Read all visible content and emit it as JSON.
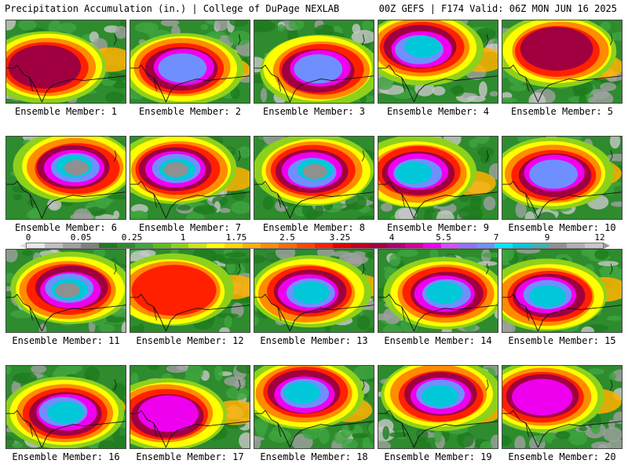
{
  "header": {
    "left": "Precipitation Accumulation (in.) | College of DuPage NEXLAB",
    "right": "00Z GEFS | F174 Valid: 06Z MON JUN 16 2025"
  },
  "members": [
    {
      "label": "Ensemble Member: 1",
      "max": 3.6
    },
    {
      "label": "Ensemble Member: 2",
      "max": 5.8
    },
    {
      "label": "Ensemble Member: 3",
      "max": 5.5
    },
    {
      "label": "Ensemble Member: 4",
      "max": 7.0
    },
    {
      "label": "Ensemble Member: 5",
      "max": 3.6
    },
    {
      "label": "Ensemble Member: 6",
      "max": 9.0
    },
    {
      "label": "Ensemble Member: 7",
      "max": 9.0
    },
    {
      "label": "Ensemble Member: 8",
      "max": 9.0
    },
    {
      "label": "Ensemble Member: 9",
      "max": 7.0
    },
    {
      "label": "Ensemble Member: 10",
      "max": 6.5
    },
    {
      "label": "Ensemble Member: 11",
      "max": 9.0
    },
    {
      "label": "Ensemble Member: 12",
      "max": 3.0
    },
    {
      "label": "Ensemble Member: 13",
      "max": 7.0
    },
    {
      "label": "Ensemble Member: 14",
      "max": 7.0
    },
    {
      "label": "Ensemble Member: 15",
      "max": 7.0
    },
    {
      "label": "Ensemble Member: 16",
      "max": 7.5
    },
    {
      "label": "Ensemble Member: 17",
      "max": 5.0
    },
    {
      "label": "Ensemble Member: 18",
      "max": 7.0
    },
    {
      "label": "Ensemble Member: 19",
      "max": 7.0
    },
    {
      "label": "Ensemble Member: 20",
      "max": 5.0
    }
  ],
  "colorbar": {
    "labels": [
      "0",
      "0.05",
      "0.25",
      "1",
      "1.75",
      "2.5",
      "3.25",
      "4",
      "5.5",
      "7",
      "9",
      "12"
    ],
    "colors": [
      "#e8e8e8",
      "#c0c0c0",
      "#a0a0a0",
      "#808080",
      "#1e7a1e",
      "#2e8b2e",
      "#3fa53f",
      "#5cbf1a",
      "#8ed11a",
      "#c8e61a",
      "#ffff00",
      "#ffd700",
      "#ffb000",
      "#ff8c00",
      "#ff6a00",
      "#ff4500",
      "#ff2000",
      "#e00000",
      "#c00020",
      "#a00040",
      "#b0006e",
      "#d0009a",
      "#ee00ee",
      "#d050ff",
      "#9070ff",
      "#6f8fff",
      "#00e5ff",
      "#00c8d8",
      "#40b0b0",
      "#909090",
      "#b0b0b0",
      "#c8c8c8"
    ]
  }
}
